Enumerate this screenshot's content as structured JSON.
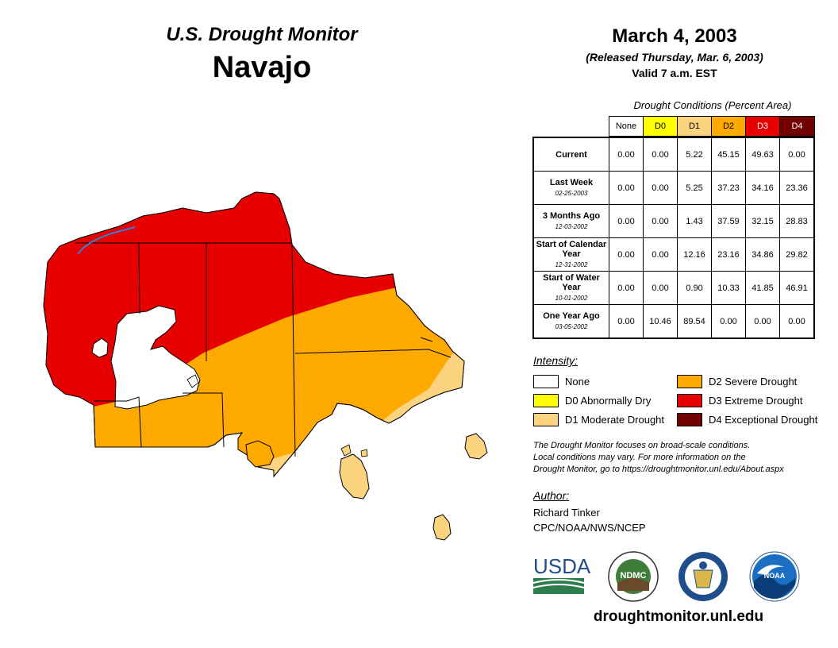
{
  "header": {
    "brand": "U.S. Drought Monitor",
    "region": "Navajo",
    "date": "March 4, 2003",
    "released": "(Released Thursday, Mar. 6, 2003)",
    "valid": "Valid 7 a.m. EST"
  },
  "table": {
    "caption": "Drought Conditions (Percent Area)",
    "categories": [
      {
        "label": "None",
        "color": "#ffffff",
        "text_color": "#000000"
      },
      {
        "label": "D0",
        "color": "#ffff00",
        "text_color": "#000000"
      },
      {
        "label": "D1",
        "color": "#fcd37f",
        "text_color": "#000000"
      },
      {
        "label": "D2",
        "color": "#ffaa00",
        "text_color": "#000000"
      },
      {
        "label": "D3",
        "color": "#e60000",
        "text_color": "#ffffff"
      },
      {
        "label": "D4",
        "color": "#730000",
        "text_color": "#ffffff"
      }
    ],
    "rows": [
      {
        "label": "Current",
        "sub": "",
        "values": [
          "0.00",
          "0.00",
          "5.22",
          "45.15",
          "49.63",
          "0.00"
        ]
      },
      {
        "label": "Last Week",
        "sub": "02-25-2003",
        "values": [
          "0.00",
          "0.00",
          "5.25",
          "37.23",
          "34.16",
          "23.36"
        ]
      },
      {
        "label": "3 Months Ago",
        "sub": "12-03-2002",
        "values": [
          "0.00",
          "0.00",
          "1.43",
          "37.59",
          "32.15",
          "28.83"
        ]
      },
      {
        "label": "Start of Calendar Year",
        "sub": "12-31-2002",
        "values": [
          "0.00",
          "0.00",
          "12.16",
          "23.16",
          "34.86",
          "29.82"
        ]
      },
      {
        "label": "Start of Water Year",
        "sub": "10-01-2002",
        "values": [
          "0.00",
          "0.00",
          "0.90",
          "10.33",
          "41.85",
          "46.91"
        ]
      },
      {
        "label": "One Year Ago",
        "sub": "03-05-2002",
        "values": [
          "0.00",
          "10.46",
          "89.54",
          "0.00",
          "0.00",
          "0.00"
        ]
      }
    ]
  },
  "legend": {
    "title": "Intensity:",
    "items": [
      {
        "label": "None",
        "color": "#ffffff"
      },
      {
        "label": "D0 Abnormally Dry",
        "color": "#ffff00"
      },
      {
        "label": "D1 Moderate Drought",
        "color": "#fcd37f"
      },
      {
        "label": "D2 Severe Drought",
        "color": "#ffaa00"
      },
      {
        "label": "D3 Extreme Drought",
        "color": "#e60000"
      },
      {
        "label": "D4 Exceptional Drought",
        "color": "#730000"
      }
    ]
  },
  "note": {
    "line1": "The Drought Monitor focuses on broad-scale conditions.",
    "line2": "Local conditions may vary. For more information on the",
    "line3": "Drought Monitor, go to https://droughtmonitor.unl.edu/About.aspx"
  },
  "author": {
    "title": "Author:",
    "name": "Richard Tinker",
    "org": "CPC/NOAA/NWS/NCEP"
  },
  "logos": {
    "usda": "USDA",
    "ndmc": "NDMC",
    "noaa": "NOAA"
  },
  "footer": {
    "url": "droughtmonitor.unl.edu"
  },
  "map_colors": {
    "d1": "#fcd37f",
    "d2": "#ffaa00",
    "d3": "#e60000",
    "boundary": "#000000",
    "water": "#3a7bd5"
  }
}
